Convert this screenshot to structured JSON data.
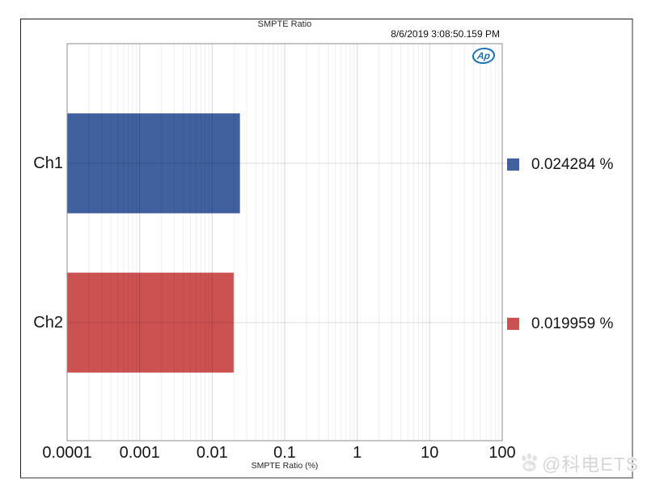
{
  "window": {
    "timestamp": "8/6/2019 3:08:50.159 PM"
  },
  "logo": {
    "name": "audio-precision",
    "label": "Ap",
    "color": "#1E73B5"
  },
  "watermark": {
    "icon": "baidu-paw-icon",
    "icon_label": "du",
    "text": "@科电ETS"
  },
  "chart_data": {
    "type": "bar",
    "orientation": "horizontal",
    "title": "SMPTE Ratio",
    "xlabel": "SMPTE Ratio (%)",
    "x_scale": "log",
    "xlim": [
      0.0001,
      100
    ],
    "x_tick_labels": [
      "0.0001",
      "0.001",
      "0.01",
      "0.1",
      "1",
      "10",
      "100"
    ],
    "grid": true,
    "legend_position": "right",
    "categories": [
      "Ch1",
      "Ch2"
    ],
    "series": [
      {
        "name": "Ch1",
        "value": 0.024284,
        "legend_label": "0.024284 %",
        "color": "#40609E"
      },
      {
        "name": "Ch2",
        "value": 0.019959,
        "legend_label": "0.019959 %",
        "color": "#CC5151"
      }
    ]
  }
}
